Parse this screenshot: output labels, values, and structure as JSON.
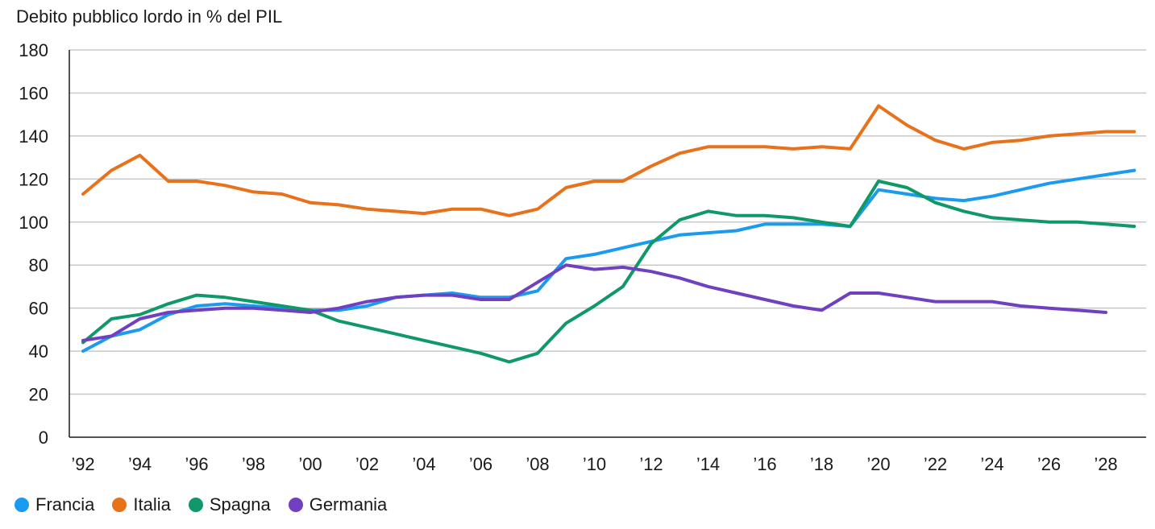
{
  "chart_data": {
    "type": "line",
    "title": "Debito pubblico lordo in % del PIL",
    "xlabel": "",
    "ylabel": "",
    "ylim": [
      0,
      180
    ],
    "yticks": [
      "0",
      "20",
      "40",
      "60",
      "80",
      "100",
      "120",
      "140",
      "160",
      "180"
    ],
    "xtick_labels": [
      "’92",
      "’94",
      "’96",
      "’98",
      "’00",
      "’02",
      "’04",
      "’06",
      "’08",
      "’10",
      "’12",
      "’14",
      "’16",
      "’18",
      "’20",
      "’22",
      "’24",
      "’26",
      "’28"
    ],
    "grid": "horizontal",
    "legend_position": "bottom-left",
    "x": [
      1992,
      1993,
      1994,
      1995,
      1996,
      1997,
      1998,
      1999,
      2000,
      2001,
      2002,
      2003,
      2004,
      2005,
      2006,
      2007,
      2008,
      2009,
      2010,
      2011,
      2012,
      2013,
      2014,
      2015,
      2016,
      2017,
      2018,
      2019,
      2020,
      2021,
      2022,
      2023,
      2024,
      2025,
      2026,
      2027,
      2028,
      2029
    ],
    "series": [
      {
        "name": "Francia",
        "color": "#1a9bef",
        "values": [
          40,
          47,
          50,
          57,
          61,
          62,
          61,
          60,
          59,
          59,
          61,
          65,
          66,
          67,
          65,
          65,
          68,
          83,
          85,
          88,
          91,
          94,
          95,
          96,
          99,
          99,
          99,
          98,
          115,
          113,
          111,
          110,
          112,
          115,
          118,
          120,
          122,
          124
        ]
      },
      {
        "name": "Italia",
        "color": "#e8711c",
        "values": [
          113,
          124,
          131,
          119,
          119,
          117,
          114,
          113,
          109,
          108,
          106,
          105,
          104,
          106,
          106,
          103,
          106,
          116,
          119,
          119,
          126,
          132,
          135,
          135,
          135,
          134,
          135,
          134,
          154,
          145,
          138,
          134,
          137,
          138,
          140,
          141,
          142,
          142
        ]
      },
      {
        "name": "Spagna",
        "color": "#0f9868",
        "values": [
          44,
          55,
          57,
          62,
          66,
          65,
          63,
          61,
          59,
          54,
          51,
          48,
          45,
          42,
          39,
          35,
          39,
          53,
          61,
          70,
          90,
          101,
          105,
          103,
          103,
          102,
          100,
          98,
          119,
          116,
          109,
          105,
          102,
          101,
          100,
          100,
          99,
          98
        ]
      },
      {
        "name": "Germania",
        "color": "#6f40c0",
        "values": [
          45,
          47,
          55,
          58,
          59,
          60,
          60,
          59,
          58,
          60,
          63,
          65,
          66,
          66,
          64,
          64,
          72,
          80,
          78,
          79,
          77,
          74,
          70,
          67,
          64,
          61,
          59,
          67,
          67,
          65,
          63,
          63,
          63,
          61,
          60,
          59,
          58,
          null
        ]
      }
    ]
  }
}
